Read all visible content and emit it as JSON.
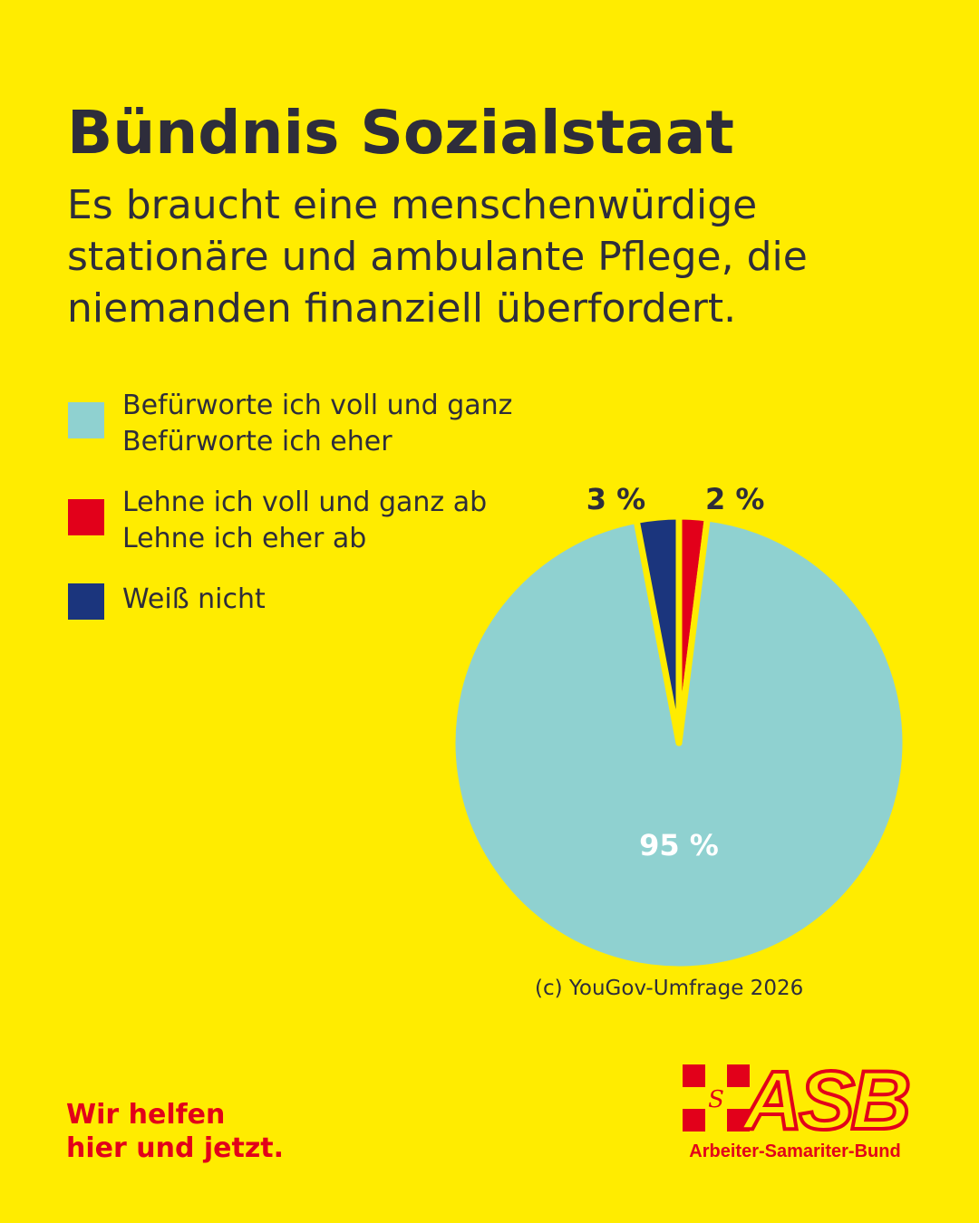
{
  "header": {
    "title": "Bündnis Sozialstaat",
    "subtitle": "Es braucht eine menschenwürdige stationäre und ambulante Pflege, die niemanden finanziell überfordert."
  },
  "chart_data": {
    "type": "pie",
    "title": "Bündnis Sozialstaat",
    "legend_position": "top-left",
    "slices": [
      {
        "labels": [
          "Befürworte ich voll und ganz",
          "Befürworte ich eher"
        ],
        "value": 95,
        "label": "95 %",
        "color": "#8FD1D0"
      },
      {
        "labels": [
          "Lehne ich voll und ganz ab",
          "Lehne ich eher ab"
        ],
        "value": 2,
        "label": "2 %",
        "color": "#E2001A"
      },
      {
        "labels": [
          "Weiß nicht"
        ],
        "value": 3,
        "label": "3 %",
        "color": "#1B357D"
      }
    ]
  },
  "source": "(c) YouGov-Umfrage 2026",
  "footer": {
    "tagline_1": "Wir helfen",
    "tagline_2": "hier und jetzt."
  },
  "logo": {
    "mark": "ASB",
    "name": "Arbeiter-Samariter-Bund"
  }
}
